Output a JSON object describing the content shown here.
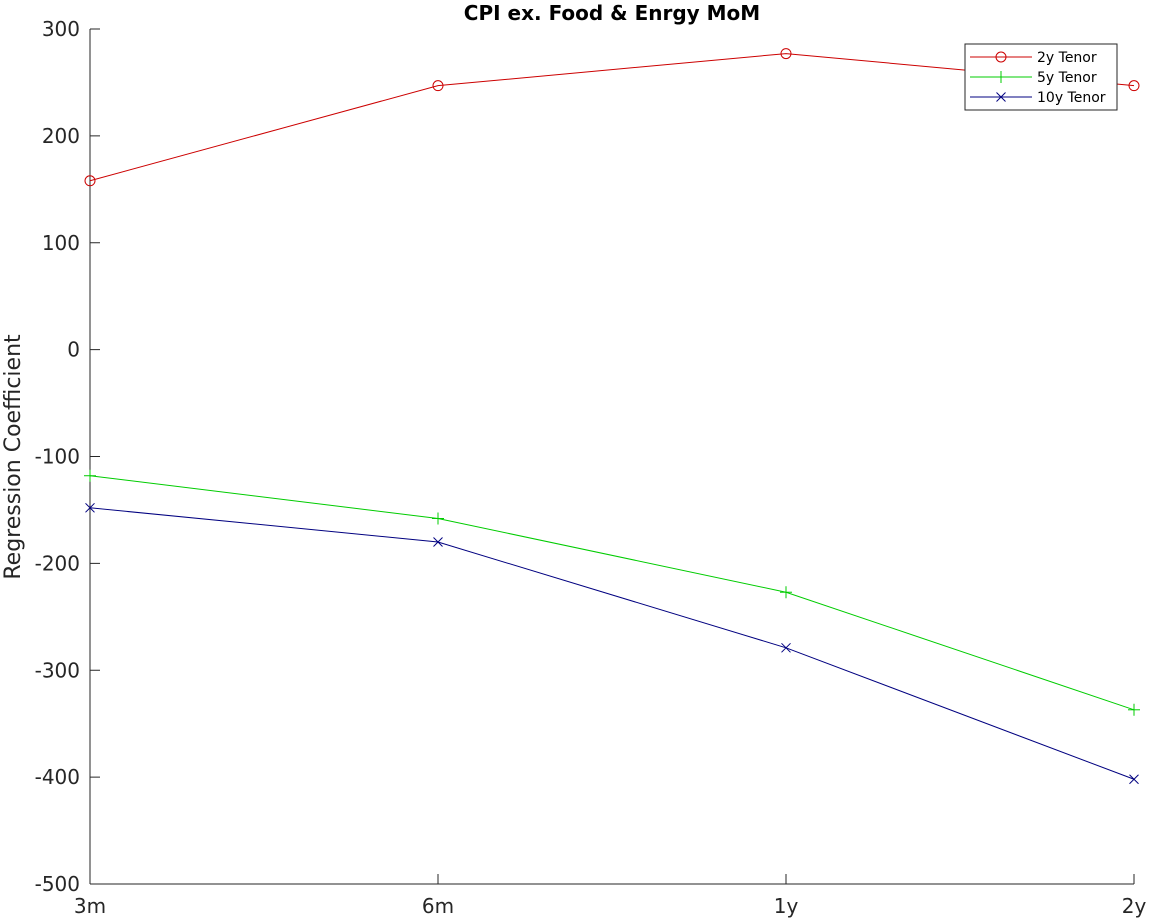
{
  "chart_data": {
    "type": "line",
    "title": "CPI ex. Food & Enrgy MoM",
    "xlabel": "",
    "ylabel": "Regression Coefficient",
    "categories": [
      "3m",
      "6m",
      "1y",
      "2y"
    ],
    "ylim": [
      -500,
      300
    ],
    "yticks": [
      -500,
      -400,
      -300,
      -200,
      -100,
      0,
      100,
      200,
      300
    ],
    "grid": false,
    "legend_position": "top-right",
    "series": [
      {
        "name": "2y Tenor",
        "values": [
          158,
          247,
          277,
          247
        ],
        "color": "#cc0000",
        "marker": "circle"
      },
      {
        "name": "5y Tenor",
        "values": [
          -118,
          -158,
          -227,
          -337
        ],
        "color": "#00cc00",
        "marker": "plus"
      },
      {
        "name": "10y Tenor",
        "values": [
          -148,
          -180,
          -279,
          -402
        ],
        "color": "#000080",
        "marker": "x"
      }
    ]
  }
}
